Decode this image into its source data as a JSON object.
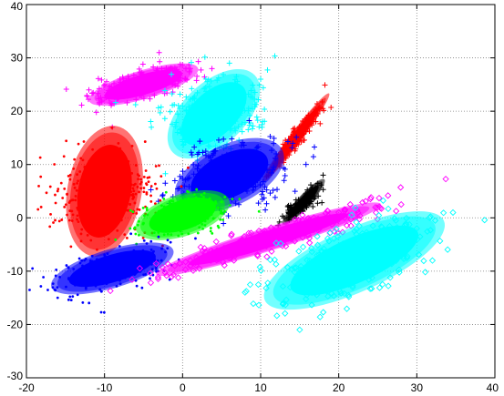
{
  "chart_data": {
    "type": "scatter",
    "title": "",
    "xlabel": "",
    "ylabel": "",
    "xlim": [
      -20,
      40
    ],
    "ylim": [
      -30,
      40
    ],
    "x_ticks": [
      "-20",
      "-10",
      "0",
      "10",
      "20",
      "30",
      "40"
    ],
    "y_ticks": [
      "40",
      "30",
      "20",
      "10",
      "0",
      "-10",
      "-20",
      "-30"
    ],
    "grid": true,
    "legend": "none",
    "series": [
      {
        "color": "#ff00ff",
        "marker": "plus",
        "center": [
          -5,
          25
        ],
        "sx": 3.2,
        "sy": 1.8,
        "rho": 0.65,
        "n": 220,
        "points": [
          [
            -3,
            31
          ],
          [
            -9,
            17
          ],
          [
            -12,
            24
          ],
          [
            1,
            28
          ]
        ]
      },
      {
        "color": "#00ffff",
        "marker": "plus",
        "center": [
          4,
          19.5
        ],
        "sx": 3.0,
        "sy": 3.2,
        "rho": 0.2,
        "n": 240,
        "points": [
          [
            6,
            29
          ],
          [
            -4,
            17
          ],
          [
            10,
            26
          ],
          [
            2,
            12
          ]
        ]
      },
      {
        "color": "#ff0000",
        "marker": "plus",
        "center": [
          14.5,
          15
        ],
        "sx": 1.6,
        "sy": 3.0,
        "rho": 0.93,
        "n": 150,
        "points": [
          [
            17.5,
            20.5
          ],
          [
            11,
            8
          ]
        ]
      },
      {
        "color": "#0000ff",
        "marker": "plus",
        "center": [
          6,
          8
        ],
        "sx": 3.3,
        "sy": 3.0,
        "rho": 0.25,
        "n": 260,
        "points": [
          [
            12,
            12
          ],
          [
            0,
            4
          ],
          [
            13,
            7
          ],
          [
            -1,
            1
          ]
        ]
      },
      {
        "color": "#000000",
        "marker": "plus",
        "center": [
          15.5,
          3
        ],
        "sx": 1.1,
        "sy": 1.6,
        "rho": 0.8,
        "n": 90,
        "points": [
          [
            18,
            8
          ],
          [
            13,
            0
          ]
        ]
      },
      {
        "color": "#ff0000",
        "marker": "dot",
        "center": [
          -10,
          5
        ],
        "sx": 3.3,
        "sy": 4.0,
        "rho": 0.05,
        "n": 330,
        "points": [
          [
            -16,
            5
          ],
          [
            -8,
            13
          ],
          [
            -13,
            -3
          ]
        ]
      },
      {
        "color": "#00ff00",
        "marker": "dot",
        "center": [
          0,
          0.5
        ],
        "sx": 2.8,
        "sy": 2.1,
        "rho": 0.35,
        "n": 230,
        "points": [
          [
            -5,
            -1
          ],
          [
            5,
            3
          ]
        ]
      },
      {
        "color": "#0000ff",
        "marker": "dot",
        "center": [
          -9,
          -9.5
        ],
        "sx": 3.6,
        "sy": 2.2,
        "rho": 0.55,
        "n": 260,
        "points": [
          [
            -16,
            -15
          ],
          [
            -4,
            -6
          ]
        ]
      },
      {
        "color": "#ff00ff",
        "marker": "diamond",
        "center": [
          11,
          -4
        ],
        "sx": 6.5,
        "sy": 3.1,
        "rho": 0.93,
        "n": 230,
        "points": [
          [
            20,
            1
          ],
          [
            1,
            -8
          ],
          [
            -1,
            -9
          ]
        ]
      },
      {
        "color": "#00ffff",
        "marker": "diamond",
        "center": [
          22,
          -8
        ],
        "sx": 5.2,
        "sy": 4.0,
        "rho": 0.6,
        "n": 300,
        "points": [
          [
            30,
            -2
          ],
          [
            15,
            -21
          ],
          [
            32,
            -8
          ],
          [
            8,
            -14
          ]
        ]
      }
    ]
  }
}
